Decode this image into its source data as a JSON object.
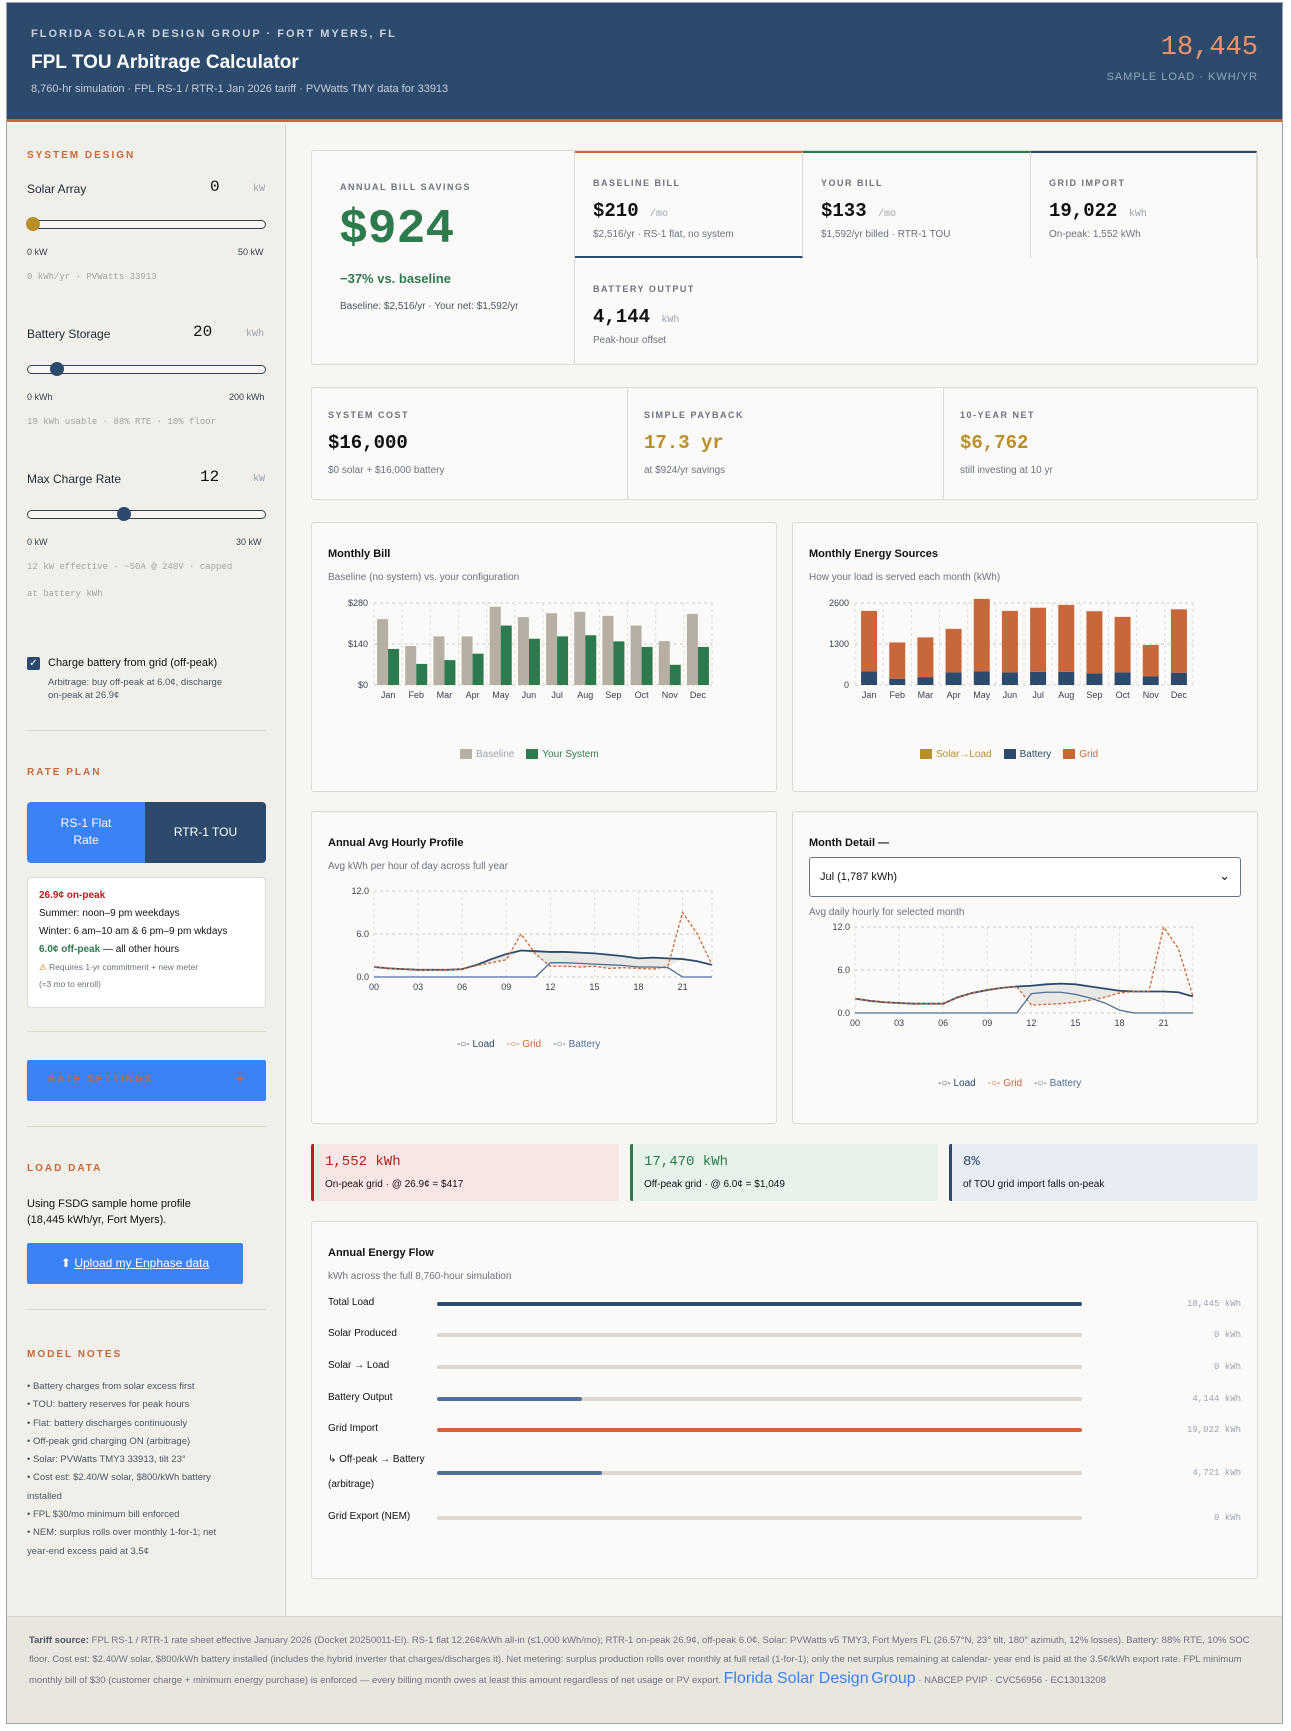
{
  "header": {
    "eyebrow": "FLORIDA SOLAR DESIGN GROUP · FORT MYERS, FL",
    "title": "FPL TOU Arbitrage Calculator",
    "subtitle": "8,760-hr simulation · FPL RS-1 / RTR-1 Jan 2026 tariff · PVWatts TMY data for 33913",
    "sample_load_value": "18,445",
    "sample_load_label": "SAMPLE LOAD · KWH/YR"
  },
  "sidebar": {
    "system_design_heading": "SYSTEM DESIGN",
    "solar": {
      "label": "Solar Array",
      "value": "0",
      "unit": "kW",
      "min": "0 kW",
      "max": "50 kW",
      "note": "0 kWh/yr · PVWatts 33913",
      "level": 0.0
    },
    "battery": {
      "label": "Battery Storage",
      "value": "20",
      "unit": "kWh",
      "min": "0 kWh",
      "max": "200 kWh",
      "note": "18 kWh usable · 88% RTE · 10% floor",
      "level": 0.1
    },
    "charge_rate": {
      "label": "Max Charge Rate",
      "value": "12",
      "unit": "kW",
      "min": "0 kW",
      "max": "30 kW",
      "note_line1": "12 kW effective · ~50A @ 240V · capped",
      "note_line2": "at battery kWh",
      "level": 0.4
    },
    "grid_charge": {
      "label": "Charge battery from grid (off-peak)",
      "checked": true,
      "desc_line1": "Arbitrage: buy off-peak at 6.0¢, discharge",
      "desc_line2": "on-peak at 26.9¢"
    },
    "rate_plan_heading": "RATE PLAN",
    "rate_btn_flat_l1": "RS-1 Flat",
    "rate_btn_flat_l2": "Rate",
    "rate_btn_tou": "RTR-1 TOU",
    "rate_info": {
      "on_peak": "26.9¢ on-peak",
      "summer": "Summer: noon–9 pm weekdays",
      "winter": "Winter: 6 am–10 am & 6 pm–9 pm wkdays",
      "off_peak_rate": "6.0¢ off-peak",
      "off_peak_rest": " — all other hours",
      "warn_l1": "Requires 1-yr commitment + new meter",
      "warn_l2": "(≈3 mo to enroll)"
    },
    "rate_settings_label": "RATE SETTINGS",
    "rate_settings_icon": "+",
    "load_heading": "LOAD DATA",
    "load_text_l1": "Using FSDG sample home profile",
    "load_text_l2": "(18,445 kWh/yr, Fort Myers).",
    "upload_label": "Upload my Enphase data",
    "notes_heading": "MODEL NOTES",
    "notes": [
      "• Battery charges from solar excess first",
      "• TOU: battery reserves for peak hours",
      "• Flat: battery discharges continuously",
      "• Off-peak grid charging ON (arbitrage)",
      "• Solar: PVWatts TMY3 33913, tilt 23°",
      "• Cost est: $2.40/W solar, $800/kWh battery",
      "installed",
      "• FPL $30/mo minimum bill enforced",
      "• NEM: surplus rolls over monthly 1-for-1; net",
      "year-end excess paid at 3.5¢"
    ]
  },
  "kpis": {
    "savings_label": "ANNUAL BILL SAVINGS",
    "savings_value": "$924",
    "savings_pct": "−37% vs. baseline",
    "savings_sub": "Baseline: $2,516/yr · Your net: $1,592/yr",
    "baseline_label": "BASELINE BILL",
    "baseline_value": "$210",
    "baseline_unit": "/mo",
    "baseline_sub": "$2,516/yr · RS-1 flat, no system",
    "yourbill_label": "YOUR BILL",
    "yourbill_value": "$133",
    "yourbill_unit": "/mo",
    "yourbill_sub": "$1,592/yr billed · RTR-1 TOU",
    "import_label": "GRID IMPORT",
    "import_value": "19,022",
    "import_unit": "kWh",
    "import_sub": "On-peak: 1,552 kWh",
    "batt_label": "BATTERY OUTPUT",
    "batt_value": "4,144",
    "batt_unit": "kWh",
    "batt_sub": "Peak-hour offset",
    "cost_label": "SYSTEM COST",
    "cost_value": "$16,000",
    "cost_sub": "$0 solar + $16,000 battery",
    "payback_label": "SIMPLE PAYBACK",
    "payback_value": "17.3 yr",
    "payback_sub": "at $924/yr savings",
    "net_label": "10-YEAR NET",
    "net_value": "$6,762",
    "net_sub": "still investing at 10 yr"
  },
  "monthly_bill": {
    "title": "Monthly Bill",
    "subtitle": "Baseline (no system) vs. your configuration"
  },
  "monthly_sources": {
    "title": "Monthly Energy Sources",
    "subtitle": "How your load is served each month (kWh)"
  },
  "hourly_profile": {
    "title": "Annual Avg Hourly Profile",
    "subtitle": "Avg kWh per hour of day across full year"
  },
  "month_detail": {
    "title": "Month Detail —",
    "selected": "Jul (1,787 kWh)",
    "subtitle": "Avg daily hourly for selected month"
  },
  "stats": {
    "onpeak_value": "1,552 kWh",
    "onpeak_desc": "On-peak grid · @ 26.9¢ = $417",
    "offpeak_value": "17,470 kWh",
    "offpeak_desc": "Off-peak grid · @ 6.0¢ = $1,049",
    "share_value": "8%",
    "share_desc": "of TOU grid import falls on-peak"
  },
  "flow": {
    "title": "Annual Energy Flow",
    "subtitle": "kWh across the full 8,760-hour simulation",
    "rows": [
      {
        "l1": "Total Load",
        "l2": "",
        "value": "18,445 kWh",
        "frac": 1.0,
        "color": "#2c4a6b"
      },
      {
        "l1": "Solar Produced",
        "l2": "",
        "value": "0 kWh",
        "frac": 0,
        "color": "#b8902a"
      },
      {
        "l1": "Solar → Load",
        "l2": "",
        "value": "0 kWh",
        "frac": 0,
        "color": "#b8902a"
      },
      {
        "l1": "Battery Output",
        "l2": "",
        "value": "4,144 kWh",
        "frac": 0.225,
        "color": "#4e6f99"
      },
      {
        "l1": "Grid Import",
        "l2": "",
        "value": "19,022 kWh",
        "frac": 1.0,
        "color": "#c8683a"
      },
      {
        "l1": "↳ Off-peak → Battery",
        "l2": "(arbitrage)",
        "value": "4,721 kWh",
        "frac": 0.256,
        "color": "#4e6f99"
      },
      {
        "l1": "Grid Export (NEM)",
        "l2": "",
        "value": "0 kWh",
        "frac": 0,
        "color": "#9ca3af"
      }
    ]
  },
  "footer": {
    "label": "Tariff source:",
    "line1": " FPL RS-1 / RTR-1 rate sheet effective January 2026 (Docket 20250011-EI). RS-1 flat 12.26¢/kWh all-in (≤1,000 kWh/mo); RTR-1 on-peak 26.9¢, off-peak 6.0¢. Solar: PVWatts v5 TMY3, Fort Myers FL (26.57°N, 23° tilt, 180° azimuth, 12% losses).",
    "line2": "Battery: 88% RTE, 10% SOC floor. Cost est: $2.40/W solar, $800/kWh battery installed (includes the hybrid inverter that charges/discharges it). Net metering: surplus production rolls over monthly at full retail (1-for-1); only the net surplus remaining at calendar-",
    "line3": "year end is paid at the 3.5¢/kWh export rate. FPL minimum monthly bill of $30 (customer charge + minimum energy purchase) is enforced — every billing month owes at least this amount regardless of net usage or PV export.",
    "brand_l1": "Florida Solar Design",
    "brand_l2": "Group",
    "credentials": "· NABCEP PVIP · CVC56956 · EC13013208"
  },
  "colors": {
    "navy": "#2c4a6b",
    "orange": "#c8683a",
    "green": "#2d7a4f",
    "gold": "#b8902a",
    "blue_btn": "#3b82f6",
    "grey_bar": "#b6b0a4"
  },
  "chart_data": [
    {
      "type": "bar",
      "title": "Monthly Bill",
      "categories": [
        "Jan",
        "Feb",
        "Mar",
        "Apr",
        "May",
        "Jun",
        "Jul",
        "Aug",
        "Sep",
        "Oct",
        "Nov",
        "Dec"
      ],
      "series": [
        {
          "name": "Baseline",
          "color": "#b6b0a4",
          "values": [
            225,
            133,
            166,
            166,
            267,
            232,
            245,
            250,
            236,
            203,
            150,
            243
          ]
        },
        {
          "name": "Your System",
          "color": "#2d7a4f",
          "values": [
            123,
            72,
            85,
            107,
            203,
            158,
            166,
            170,
            149,
            130,
            69,
            130
          ]
        }
      ],
      "yticks": [
        "$0",
        "$140",
        "$280"
      ],
      "ylim": [
        0,
        280
      ]
    },
    {
      "type": "bar",
      "title": "Monthly Energy Sources",
      "stacked": true,
      "categories": [
        "Jan",
        "Feb",
        "Mar",
        "Apr",
        "May",
        "Jun",
        "Jul",
        "Aug",
        "Sep",
        "Oct",
        "Nov",
        "Dec"
      ],
      "series": [
        {
          "name": "Solar→Load",
          "color": "#b8902a",
          "values": [
            0,
            0,
            0,
            0,
            0,
            0,
            0,
            0,
            0,
            0,
            0,
            0
          ]
        },
        {
          "name": "Battery",
          "color": "#2c4a6b",
          "values": [
            430,
            200,
            250,
            400,
            430,
            400,
            420,
            420,
            370,
            400,
            270,
            390
          ]
        },
        {
          "name": "Grid",
          "color": "#c8683a",
          "values": [
            1920,
            1150,
            1260,
            1380,
            2300,
            1950,
            2030,
            2120,
            1970,
            1760,
            1000,
            2010
          ]
        }
      ],
      "yticks": [
        "0",
        "1300",
        "2600"
      ],
      "ylim": [
        0,
        2600
      ]
    },
    {
      "type": "line",
      "title": "Annual Avg Hourly Profile",
      "x": [
        0,
        1,
        2,
        3,
        4,
        5,
        6,
        7,
        8,
        9,
        10,
        11,
        12,
        13,
        14,
        15,
        16,
        17,
        18,
        19,
        20,
        21,
        22,
        23
      ],
      "xticks": [
        "00",
        "03",
        "06",
        "09",
        "12",
        "15",
        "18",
        "21"
      ],
      "yticks": [
        "0.0",
        "6.0",
        "12.0"
      ],
      "ylim": [
        0,
        12
      ],
      "series": [
        {
          "name": "Load",
          "color": "#2c4a6b",
          "values": [
            1.4,
            1.2,
            1.1,
            1.0,
            1.0,
            1.0,
            1.1,
            1.7,
            2.5,
            3.2,
            3.7,
            3.6,
            3.5,
            3.5,
            3.4,
            3.3,
            3.1,
            2.9,
            2.6,
            2.7,
            2.6,
            2.5,
            2.2,
            1.7
          ]
        },
        {
          "name": "Grid",
          "color": "#c8683a",
          "values": [
            1.4,
            1.2,
            1.1,
            1.0,
            1.0,
            1.0,
            1.1,
            1.6,
            2.0,
            2.4,
            6.0,
            3.2,
            1.5,
            1.5,
            1.4,
            1.5,
            1.2,
            1.3,
            1.2,
            1.1,
            1.5,
            9.0,
            6.0,
            1.7
          ]
        },
        {
          "name": "Battery",
          "color": "#4e6f99",
          "values": [
            0,
            0,
            0,
            0,
            0,
            0,
            0,
            0,
            0,
            0,
            0,
            0,
            2.0,
            2.0,
            1.9,
            1.8,
            1.7,
            1.6,
            1.4,
            1.4,
            1.3,
            0,
            0,
            0
          ]
        }
      ]
    },
    {
      "type": "line",
      "title": "Month Detail — Jul (1,787 kWh)",
      "x": [
        0,
        1,
        2,
        3,
        4,
        5,
        6,
        7,
        8,
        9,
        10,
        11,
        12,
        13,
        14,
        15,
        16,
        17,
        18,
        19,
        20,
        21,
        22,
        23
      ],
      "xticks": [
        "00",
        "03",
        "06",
        "09",
        "12",
        "15",
        "18",
        "21"
      ],
      "yticks": [
        "0.0",
        "6.0",
        "12.0"
      ],
      "ylim": [
        0,
        12
      ],
      "series": [
        {
          "name": "Load",
          "color": "#2c4a6b",
          "values": [
            2.0,
            1.7,
            1.5,
            1.4,
            1.3,
            1.3,
            1.3,
            2.2,
            2.8,
            3.2,
            3.5,
            3.7,
            3.8,
            4.0,
            4.1,
            4.0,
            3.7,
            3.4,
            3.1,
            3.0,
            3.0,
            3.0,
            2.9,
            2.3
          ]
        },
        {
          "name": "Grid",
          "color": "#c8683a",
          "values": [
            2.0,
            1.7,
            1.5,
            1.4,
            1.3,
            1.3,
            1.3,
            2.2,
            2.8,
            3.2,
            3.5,
            3.7,
            1.1,
            1.2,
            1.3,
            1.5,
            1.8,
            2.2,
            2.8,
            3.0,
            3.0,
            12.0,
            9.0,
            2.3
          ]
        },
        {
          "name": "Battery",
          "color": "#4e6f99",
          "values": [
            0,
            0,
            0,
            0,
            0,
            0,
            0,
            0,
            0,
            0,
            0,
            0,
            2.7,
            2.9,
            2.9,
            2.6,
            2.1,
            1.4,
            0.4,
            0,
            0,
            0,
            0,
            0
          ]
        }
      ]
    }
  ]
}
